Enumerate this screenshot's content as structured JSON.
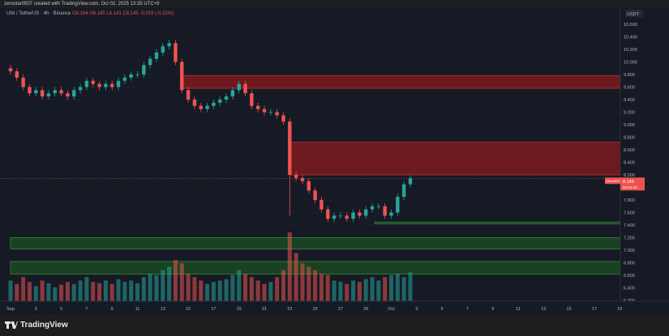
{
  "header": {
    "credit": "zerostar0507 created with TradingView.com, Oct 02, 2025 13:35 UTC+9"
  },
  "legend": {
    "symbol": "UNI / TetherUS · 4h · Binance",
    "open": "O8.164",
    "high": "H8.185",
    "low": "L8.141",
    "close": "C8.145",
    "change": "-0.019 (-0.23%)"
  },
  "price_axis": {
    "currency": "USDT",
    "ticks": [
      "10.600",
      "10.400",
      "10.200",
      "10.000",
      "9.800",
      "9.600",
      "9.400",
      "9.200",
      "9.000",
      "8.800",
      "8.600",
      "8.400",
      "8.200",
      "7.800",
      "7.600",
      "7.400",
      "7.200",
      "7.000",
      "6.800",
      "6.600",
      "6.400",
      "6.200"
    ],
    "last_price_label": "UNIUSDT",
    "last_price": "8.145",
    "countdown": "02:24:43"
  },
  "time_axis": {
    "ticks": [
      "Sep",
      "3",
      "5",
      "7",
      "9",
      "11",
      "13",
      "15",
      "17",
      "19",
      "21",
      "23",
      "25",
      "27",
      "29",
      "Oct",
      "3",
      "5",
      "7",
      "9",
      "11",
      "13",
      "15",
      "17",
      "19"
    ]
  },
  "colors": {
    "background": "#161a25",
    "up": "#26a69a",
    "down": "#ef5350",
    "supply_zone": "#b71c1c",
    "demand_zone": "#1b5e20"
  },
  "zones": [
    {
      "type": "supply",
      "from": 9.58,
      "to": 9.78,
      "start_day": 14.5
    },
    {
      "type": "supply",
      "from": 8.2,
      "to": 8.72,
      "start_day": 23.0
    },
    {
      "type": "demand",
      "from": 7.42,
      "to": 7.45,
      "start_day": 29.7
    },
    {
      "type": "demand",
      "from": 7.02,
      "to": 7.2,
      "start_day": 1
    },
    {
      "type": "demand",
      "from": 6.62,
      "to": 6.82,
      "start_day": 1
    }
  ],
  "series": {
    "interval": "12h",
    "start": "Sep 1",
    "close": [
      9.85,
      9.75,
      9.6,
      9.5,
      9.55,
      9.45,
      9.5,
      9.55,
      9.5,
      9.45,
      9.55,
      9.6,
      9.7,
      9.65,
      9.6,
      9.65,
      9.6,
      9.7,
      9.75,
      9.8,
      9.8,
      9.95,
      10.05,
      10.15,
      10.25,
      10.3,
      10.0,
      9.55,
      9.4,
      9.3,
      9.25,
      9.3,
      9.35,
      9.4,
      9.45,
      9.55,
      9.65,
      9.5,
      9.3,
      9.25,
      9.2,
      9.2,
      9.15,
      9.05,
      8.2,
      8.15,
      8.1,
      7.95,
      7.8,
      7.65,
      7.5,
      7.55,
      7.55,
      7.5,
      7.6,
      7.55,
      7.65,
      7.7,
      7.7,
      7.55,
      7.6,
      7.85,
      8.05,
      8.145
    ],
    "volume": [
      30,
      25,
      35,
      28,
      22,
      30,
      26,
      20,
      24,
      28,
      25,
      30,
      35,
      28,
      26,
      30,
      25,
      32,
      28,
      30,
      26,
      35,
      40,
      38,
      45,
      50,
      60,
      55,
      40,
      35,
      30,
      25,
      28,
      30,
      32,
      38,
      45,
      40,
      35,
      30,
      25,
      28,
      35,
      45,
      100,
      70,
      55,
      50,
      45,
      40,
      38,
      30,
      28,
      25,
      30,
      28,
      32,
      35,
      30,
      35,
      38,
      40,
      35,
      42
    ]
  }
}
